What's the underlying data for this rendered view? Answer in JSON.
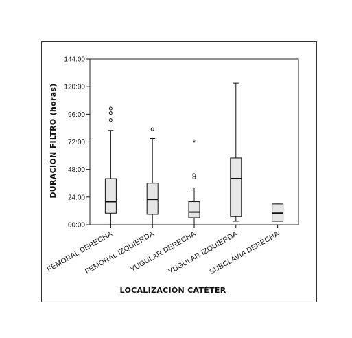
{
  "chart_data": {
    "type": "boxplot",
    "xlabel": "LOCALIZACIÓN CATÉTER",
    "ylabel": "DURACIÓN FILTRO (horas)",
    "ylim": [
      0,
      144
    ],
    "yticks": [
      0,
      24,
      48,
      72,
      96,
      120,
      144
    ],
    "yticklabels": [
      "00:00",
      "24:00",
      "48:00",
      "72:00",
      "96:00",
      "120:00",
      "144:00"
    ],
    "categories": [
      "FEMORAL DERECHA",
      "FEMORAL IZQUIERDA",
      "YUGULAR DERECHA",
      "YUGULAR IZQUIERDA",
      "SUBCLAVIA DERECHA"
    ],
    "boxes": [
      {
        "whisker_low": 0,
        "q1": 10,
        "median": 20,
        "q3": 40,
        "whisker_high": 82,
        "outliers": [
          91,
          97,
          101
        ],
        "extremes": []
      },
      {
        "whisker_low": 0,
        "q1": 9,
        "median": 22,
        "q3": 36,
        "whisker_high": 75,
        "outliers": [
          83
        ],
        "extremes": []
      },
      {
        "whisker_low": 0,
        "q1": 6,
        "median": 11,
        "q3": 20,
        "whisker_high": 32,
        "outliers": [
          41,
          43
        ],
        "extremes": [
          72
        ]
      },
      {
        "whisker_low": 3,
        "q1": 7,
        "median": 40,
        "q3": 58,
        "whisker_high": 123,
        "outliers": [],
        "extremes": []
      },
      {
        "whisker_low": 3,
        "q1": 3,
        "median": 10,
        "q3": 18,
        "whisker_high": 18,
        "outliers": [],
        "extremes": []
      }
    ],
    "colors": {
      "box_fill": "#e6e6e6",
      "stroke": "#111111"
    }
  }
}
